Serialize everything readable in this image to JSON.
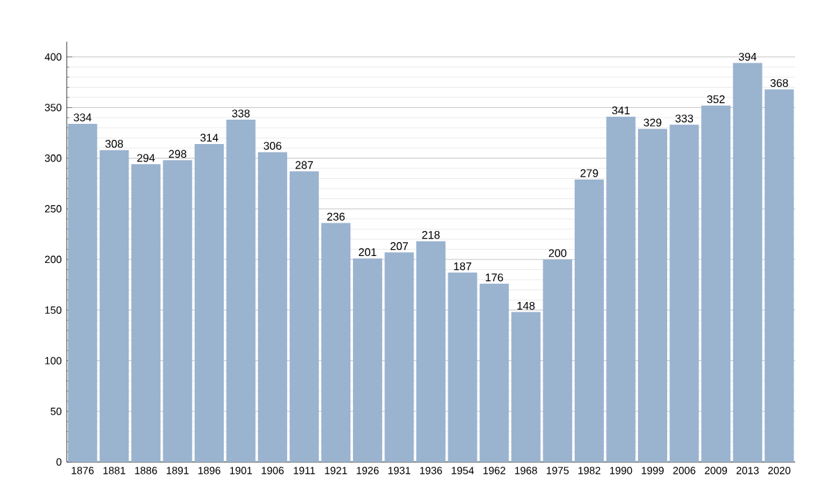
{
  "chart_data": {
    "type": "bar",
    "categories": [
      "1876",
      "1881",
      "1886",
      "1891",
      "1896",
      "1901",
      "1906",
      "1911",
      "1921",
      "1926",
      "1931",
      "1936",
      "1954",
      "1962",
      "1968",
      "1975",
      "1982",
      "1990",
      "1999",
      "2006",
      "2009",
      "2013",
      "2020"
    ],
    "values": [
      334,
      308,
      294,
      298,
      314,
      338,
      306,
      287,
      236,
      201,
      207,
      218,
      187,
      176,
      148,
      200,
      279,
      341,
      329,
      333,
      352,
      394,
      368
    ],
    "color": "#9ab3cf",
    "data_labels": true,
    "grid": "y",
    "ylim": [
      0,
      415
    ],
    "yticks": [
      0,
      50,
      100,
      150,
      200,
      250,
      300,
      350,
      400
    ]
  }
}
